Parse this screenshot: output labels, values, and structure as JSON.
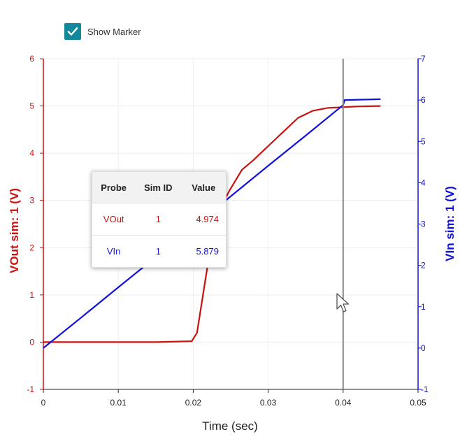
{
  "marker_toggle": {
    "label": "Show Marker",
    "checked": true,
    "color": "#13879b"
  },
  "colors": {
    "vout": "#cc1111",
    "vin": "#1111dd",
    "marker_line": "#888888"
  },
  "chart_data": {
    "type": "line",
    "xlabel": "Time (sec)",
    "ylabel_left": "VOut sim: 1 (V)",
    "ylabel_right": "VIn sim: 1 (V)",
    "xlim": [
      0,
      0.05
    ],
    "ylim_left": [
      -1,
      6
    ],
    "ylim_right": [
      -1,
      7
    ],
    "x_ticks": [
      "0",
      "0.01",
      "0.02",
      "0.03",
      "0.04",
      "0.05"
    ],
    "y_ticks_left": [
      "-1",
      "0",
      "1",
      "2",
      "3",
      "4",
      "5",
      "6"
    ],
    "y_ticks_right": [
      "-1",
      "0",
      "1",
      "2",
      "3",
      "4",
      "5",
      "6",
      "7"
    ],
    "grid": true,
    "marker_x": 0.04,
    "series": [
      {
        "name": "VOut",
        "axis": "left",
        "x": [
          0,
          0.005,
          0.01,
          0.015,
          0.0198,
          0.0205,
          0.0215,
          0.0225,
          0.0235,
          0.0248,
          0.0265,
          0.028,
          0.03,
          0.032,
          0.034,
          0.036,
          0.038,
          0.04,
          0.042,
          0.045
        ],
        "y": [
          0,
          0,
          0,
          0,
          0.02,
          0.2,
          1.2,
          2.2,
          2.8,
          3.2,
          3.65,
          3.85,
          4.15,
          4.45,
          4.75,
          4.9,
          4.96,
          4.974,
          4.99,
          5.0
        ]
      },
      {
        "name": "VIn",
        "axis": "right",
        "x": [
          0,
          0.005,
          0.01,
          0.015,
          0.02,
          0.025,
          0.03,
          0.035,
          0.04,
          0.0402,
          0.045
        ],
        "y": [
          0,
          0.73,
          1.47,
          2.2,
          2.94,
          3.67,
          4.41,
          5.14,
          5.879,
          6.0,
          6.02
        ]
      }
    ]
  },
  "tooltip": {
    "headers": [
      "Probe",
      "Sim ID",
      "Value"
    ],
    "rows": [
      {
        "probe": "VOut",
        "sim_id": "1",
        "value": "4.974"
      },
      {
        "probe": "VIn",
        "sim_id": "1",
        "value": "5.879"
      }
    ]
  }
}
